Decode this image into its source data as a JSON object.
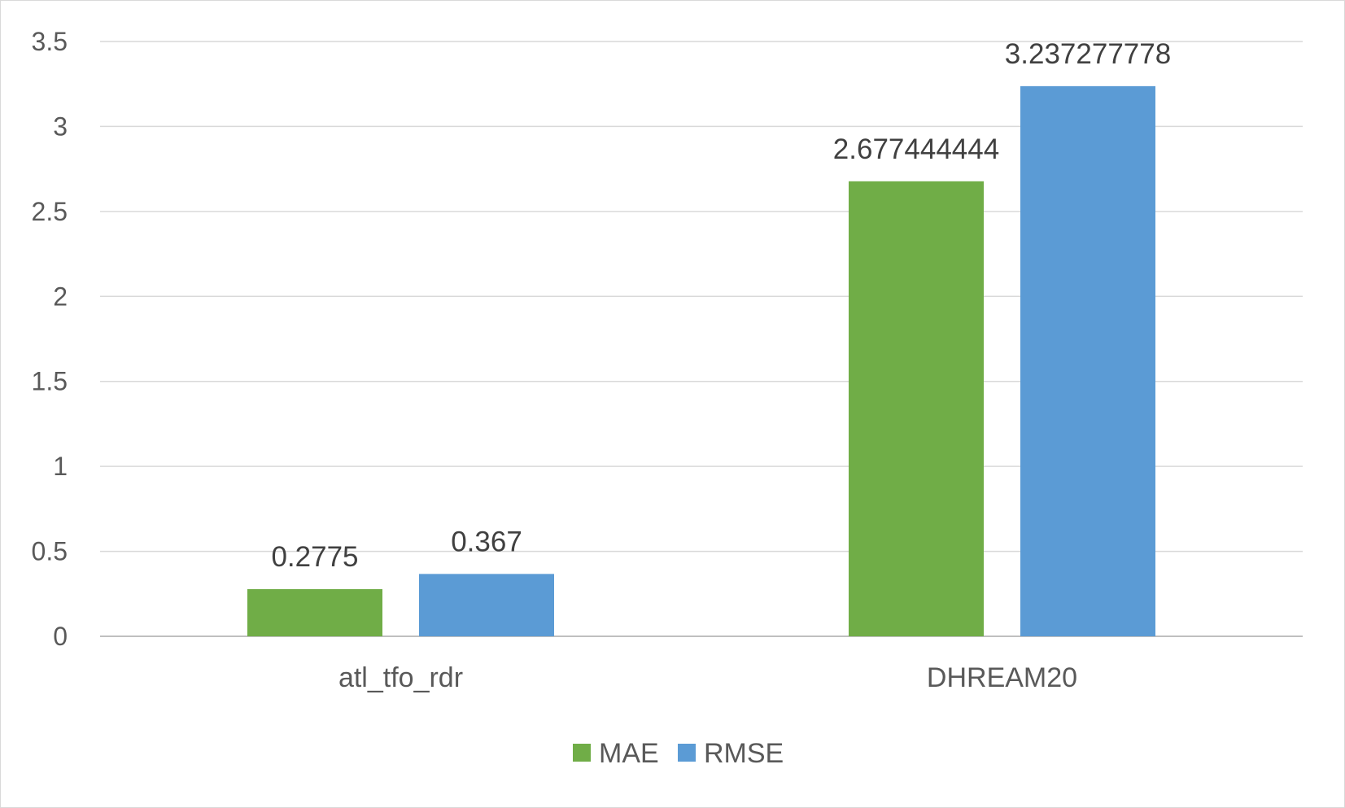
{
  "chart_data": {
    "type": "bar",
    "title": "",
    "xlabel": "",
    "ylabel": "",
    "categories": [
      "atl_tfo_rdr",
      "DHREAM20"
    ],
    "series": [
      {
        "name": "MAE",
        "color": "#70ad47",
        "values": [
          0.2775,
          2.677444444
        ],
        "labels": [
          "0.2775",
          "2.677444444"
        ]
      },
      {
        "name": "RMSE",
        "color": "#5b9bd5",
        "values": [
          0.367,
          3.237277778
        ],
        "labels": [
          "0.367",
          "3.237277778"
        ]
      }
    ],
    "ylim": [
      0,
      3.5
    ],
    "yticks": [
      0,
      0.5,
      1,
      1.5,
      2,
      2.5,
      3,
      3.5
    ],
    "ytick_labels": [
      "0",
      "0.5",
      "1",
      "1.5",
      "2",
      "2.5",
      "3",
      "3.5"
    ],
    "grid": true,
    "legend_position": "bottom-center"
  }
}
